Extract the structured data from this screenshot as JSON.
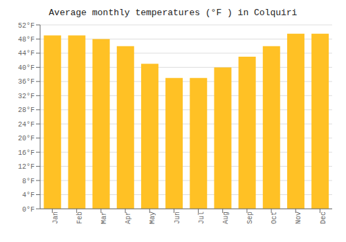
{
  "chart_data": {
    "type": "bar",
    "title": "Average monthly temperatures (°F ) in Colquiri",
    "categories": [
      "Jan",
      "Feb",
      "Mar",
      "Apr",
      "May",
      "Jun",
      "Jul",
      "Aug",
      "Sep",
      "Oct",
      "Nov",
      "Dec"
    ],
    "values": [
      49,
      49,
      48,
      46,
      41,
      37,
      37,
      40,
      43,
      46,
      49.5,
      49.5
    ],
    "color": "#FFC125",
    "ylim": [
      0,
      52
    ],
    "yticks": [
      {
        "value": 0,
        "label": "0°F"
      },
      {
        "value": 4,
        "label": "4°F"
      },
      {
        "value": 8,
        "label": "8°F"
      },
      {
        "value": 12,
        "label": "12°F"
      },
      {
        "value": 16,
        "label": "16°F"
      },
      {
        "value": 20,
        "label": "20°F"
      },
      {
        "value": 24,
        "label": "24°F"
      },
      {
        "value": 28,
        "label": "28°F"
      },
      {
        "value": 32,
        "label": "32°F"
      },
      {
        "value": 36,
        "label": "36°F"
      },
      {
        "value": 40,
        "label": "40°F"
      },
      {
        "value": 44,
        "label": "44°F"
      },
      {
        "value": 48,
        "label": "48°F"
      },
      {
        "value": 52,
        "label": "52°F"
      }
    ],
    "grid": true
  }
}
